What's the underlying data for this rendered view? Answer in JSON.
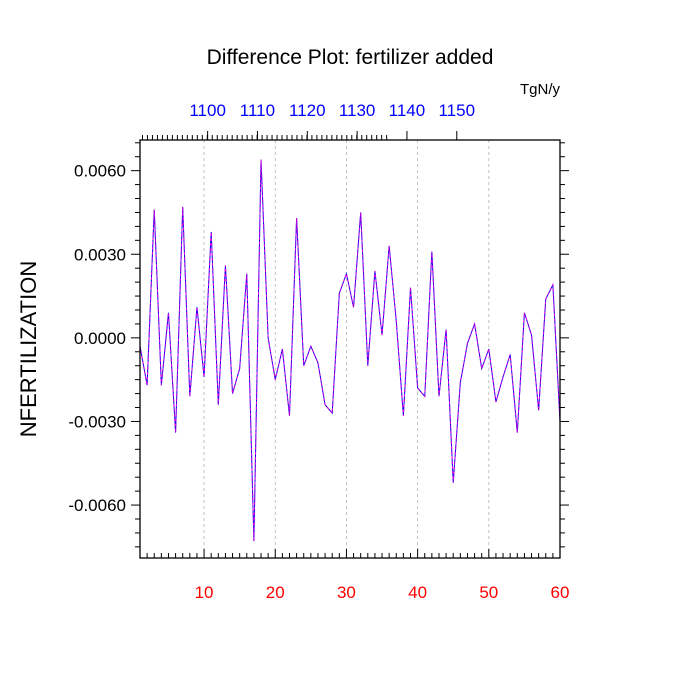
{
  "chart_data": {
    "type": "line",
    "title": "Difference Plot: fertilizer added",
    "units_label": "TgN/y",
    "ylabel": "NFERTILIZATION",
    "xlabel": "",
    "xlim": [
      1,
      60
    ],
    "ylim": [
      -0.0079,
      0.0071
    ],
    "x_ticks_bottom": [
      "10",
      "20",
      "30",
      "40",
      "50",
      "60"
    ],
    "x_ticks_bottom_values": [
      10,
      20,
      30,
      40,
      50,
      60
    ],
    "x_ticks_top": [
      "1100",
      "1110",
      "1120",
      "1130",
      "1140",
      "1150"
    ],
    "x_ticks_top_values": [
      10.5,
      17.5,
      24.5,
      31.5,
      38.5,
      45.5
    ],
    "y_ticks": [
      "0.0060",
      "0.0030",
      "0.0000",
      "-0.0030",
      "-0.0060"
    ],
    "y_ticks_values": [
      0.006,
      0.003,
      0.0,
      -0.003,
      -0.006
    ],
    "grid": "vertical dashed at major x ticks",
    "colors": {
      "line_solid": "#0000ff",
      "line_dashed": "#d400d4",
      "bottom_ticks": "#ff0000",
      "top_ticks": "#0000ff",
      "text": "#000000",
      "grid": "#b4b4b4"
    },
    "x": [
      1,
      2,
      3,
      4,
      5,
      6,
      7,
      8,
      9,
      10,
      11,
      12,
      13,
      14,
      15,
      16,
      17,
      18,
      19,
      20,
      21,
      22,
      23,
      24,
      25,
      26,
      27,
      28,
      29,
      30,
      31,
      32,
      33,
      34,
      35,
      36,
      37,
      38,
      39,
      40,
      41,
      42,
      43,
      44,
      45,
      46,
      47,
      48,
      49,
      50,
      51,
      52,
      53,
      54,
      55,
      56,
      57,
      58,
      59,
      60
    ],
    "series": [
      {
        "values": [
          -0.0003,
          -0.0017,
          0.0046,
          -0.0017,
          0.0009,
          -0.0034,
          0.0047,
          -0.0021,
          0.0011,
          -0.0014,
          0.0038,
          -0.0024,
          0.0026,
          -0.002,
          -0.0011,
          0.0023,
          -0.0073,
          0.0064,
          0.0,
          -0.0015,
          -0.0004,
          -0.0028,
          0.0043,
          -0.001,
          -0.0003,
          -0.0009,
          -0.0024,
          -0.0027,
          0.0016,
          0.0023,
          0.0011,
          0.0045,
          -0.001,
          0.0024,
          0.0001,
          0.0033,
          0.0006,
          -0.0028,
          0.0018,
          -0.0018,
          -0.0021,
          0.0031,
          -0.0021,
          0.0003,
          -0.0052,
          -0.0016,
          -0.0002,
          0.0005,
          -0.0011,
          -0.0004,
          -0.0023,
          -0.0014,
          -0.0006,
          -0.0034,
          0.0009,
          0.0001,
          -0.0026,
          0.0014,
          0.0019,
          -0.003
        ]
      }
    ]
  }
}
